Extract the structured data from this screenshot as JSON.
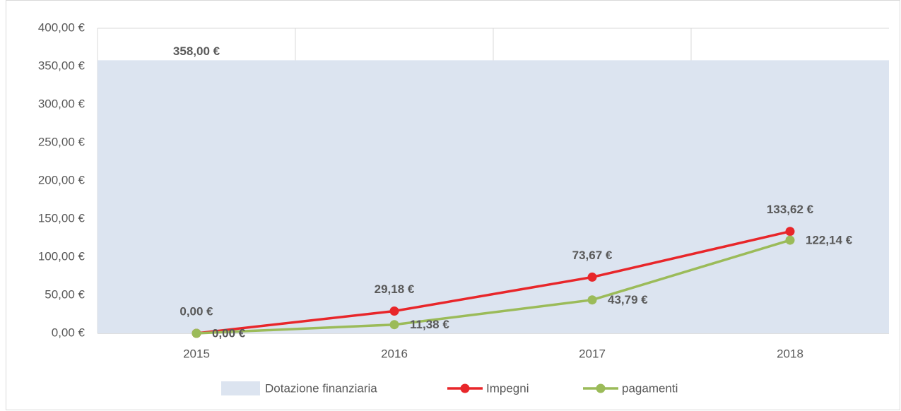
{
  "chart_data": {
    "type": "line",
    "categories": [
      "2015",
      "2016",
      "2017",
      "2018"
    ],
    "series": [
      {
        "name": "Dotazione finanziaria",
        "type": "area",
        "color": "#dce4f0",
        "values": [
          358,
          358,
          358,
          358
        ],
        "value_labels": [
          "358,00 €",
          null,
          null,
          null
        ]
      },
      {
        "name": "Impegni",
        "type": "line",
        "color": "#e8262a",
        "values": [
          0,
          29.18,
          73.67,
          133.62
        ],
        "value_labels": [
          "0,00 €",
          "29,18 €",
          "73,67 €",
          "133,62 €"
        ]
      },
      {
        "name": "pagamenti",
        "type": "line",
        "color": "#9bbb59",
        "values": [
          0,
          11.38,
          43.79,
          122.14
        ],
        "value_labels": [
          "0,00 €",
          "11,38 €",
          "43,79 €",
          "122,14 €"
        ]
      }
    ],
    "ylim": [
      0,
      400
    ],
    "yticks": [
      {
        "value": 0,
        "label": "0,00 €"
      },
      {
        "value": 50,
        "label": "50,00 €"
      },
      {
        "value": 100,
        "label": "100,00 €"
      },
      {
        "value": 150,
        "label": "150,00 €"
      },
      {
        "value": 200,
        "label": "200,00 €"
      },
      {
        "value": 250,
        "label": "250,00 €"
      },
      {
        "value": 300,
        "label": "300,00 €"
      },
      {
        "value": 350,
        "label": "350,00 €"
      },
      {
        "value": 400,
        "label": "400,00 €"
      }
    ],
    "grid": true,
    "legend": "bottom"
  }
}
